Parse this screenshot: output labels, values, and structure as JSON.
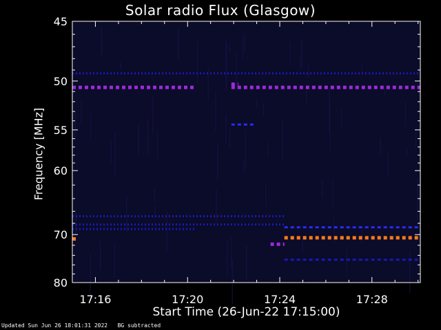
{
  "chart_data": {
    "type": "heatmap",
    "title": "Solar radio Flux (Glasgow)",
    "xlabel": "Start Time (26-Jun-22 17:15:00)",
    "ylabel": "Frequency [MHz]",
    "start_time": "17:15:00",
    "xlim_minutes": [
      0,
      15.1
    ],
    "x_ticks": [
      {
        "minute": 1,
        "label": "17:16"
      },
      {
        "minute": 5,
        "label": "17:20"
      },
      {
        "minute": 9,
        "label": "17:24"
      },
      {
        "minute": 13,
        "label": "17:28"
      }
    ],
    "y_ticks": [
      {
        "value": 45,
        "label": "45"
      },
      {
        "value": 50,
        "label": "50"
      },
      {
        "value": 55,
        "label": "55"
      },
      {
        "value": 60,
        "label": "60"
      },
      {
        "value": 70,
        "label": "70"
      },
      {
        "value": 80,
        "label": "80"
      }
    ],
    "y_axis_scale": "reciprocal",
    "ylim": [
      45,
      80
    ],
    "colormap": "black-blue-red-orange",
    "colors": {
      "background": "#000000",
      "plot_background": "#0b0b2a",
      "axes": "#ffffff",
      "weak": "#1a1ab8",
      "medium": "#2b2bff",
      "strong": "#9b2bd8",
      "hot": "#ff7a1a"
    },
    "features": [
      {
        "kind": "band",
        "frequency": 49.3,
        "t_start": 0,
        "t_end": 15.1,
        "intensity": 0.45,
        "style": "dotted"
      },
      {
        "kind": "band",
        "frequency": 50.6,
        "t_start": 0,
        "t_end": 5.3,
        "intensity": 0.8,
        "style": "dashed"
      },
      {
        "kind": "band",
        "frequency": 50.6,
        "t_start": 6.9,
        "t_end": 15.1,
        "intensity": 0.8,
        "style": "dashed"
      },
      {
        "kind": "band",
        "frequency": 50.3,
        "t_start": 6.9,
        "t_end": 7.2,
        "intensity": 0.9,
        "style": "dashed"
      },
      {
        "kind": "band",
        "frequency": 54.4,
        "t_start": 6.9,
        "t_end": 7.9,
        "intensity": 0.55,
        "style": "dashed"
      },
      {
        "kind": "band",
        "frequency": 66.8,
        "t_start": 0,
        "t_end": 9.2,
        "intensity": 0.4,
        "style": "dotted"
      },
      {
        "kind": "band",
        "frequency": 68.2,
        "t_start": 0,
        "t_end": 9.2,
        "intensity": 0.45,
        "style": "dotted"
      },
      {
        "kind": "band",
        "frequency": 69.0,
        "t_start": 0,
        "t_end": 5.3,
        "intensity": 0.4,
        "style": "dotted"
      },
      {
        "kind": "band",
        "frequency": 68.7,
        "t_start": 9.2,
        "t_end": 15.1,
        "intensity": 0.7,
        "style": "dashed"
      },
      {
        "kind": "band",
        "frequency": 70.6,
        "t_start": 9.2,
        "t_end": 15.1,
        "intensity": 1.0,
        "style": "dashed"
      },
      {
        "kind": "band",
        "frequency": 71.8,
        "t_start": 8.6,
        "t_end": 9.2,
        "intensity": 0.8,
        "style": "dashed"
      },
      {
        "kind": "band",
        "frequency": 74.9,
        "t_start": 9.2,
        "t_end": 15.1,
        "intensity": 0.35,
        "style": "dashed"
      },
      {
        "kind": "spot",
        "frequency": 70.8,
        "t_start": 0,
        "t_end": 0.15,
        "intensity": 0.95,
        "style": "solid"
      }
    ],
    "grid": false
  },
  "footer": {
    "updated": "Updated Sun Jun 26 18:01:31 2022",
    "note": "BG subtracted"
  }
}
